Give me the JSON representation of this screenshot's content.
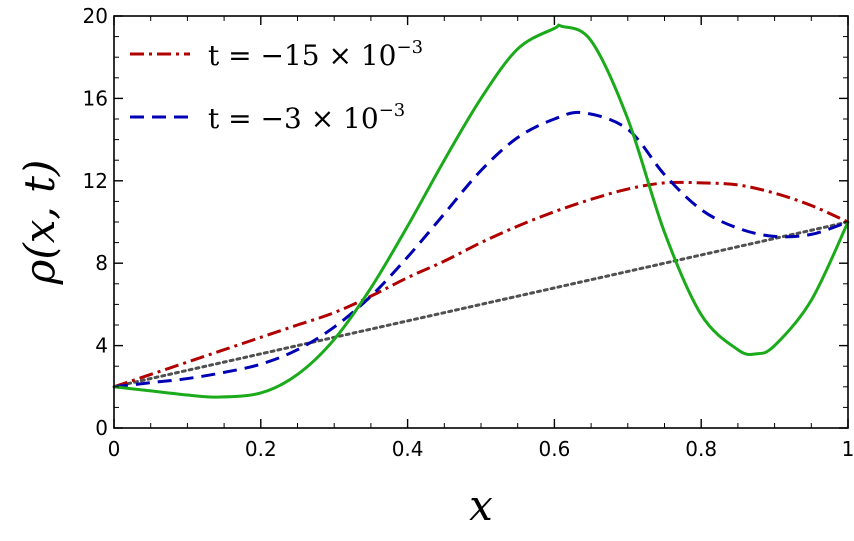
{
  "chart_data": {
    "type": "line",
    "xlabel": "x",
    "ylabel": "ρ(x, t)",
    "xlim": [
      0,
      1
    ],
    "ylim": [
      0,
      20
    ],
    "xticks": [
      0,
      0.2,
      0.4,
      0.6,
      0.8,
      1
    ],
    "xtick_labels": [
      "0",
      "0.2",
      "0.4",
      "0.6",
      "0.8",
      "1"
    ],
    "yticks": [
      0,
      4,
      8,
      12,
      16,
      20
    ],
    "ytick_labels": [
      "0",
      "4",
      "8",
      "12",
      "16",
      "20"
    ],
    "grid": false,
    "legend_placement": "top-left",
    "legend": [
      {
        "label": "t = −15 × 10",
        "exponent": "−3",
        "color": "#b00000",
        "dash": "dashdot"
      },
      {
        "label": "t = −3 × 10",
        "exponent": "−3",
        "color": "#0000b4",
        "dash": "dashed"
      }
    ],
    "series": [
      {
        "color": "#b00000",
        "dash": "dashdot",
        "x": [
          0,
          0.05,
          0.1,
          0.15,
          0.2,
          0.25,
          0.3,
          0.35,
          0.4,
          0.45,
          0.5,
          0.55,
          0.6,
          0.65,
          0.7,
          0.75,
          0.8,
          0.85,
          0.9,
          0.95,
          1
        ],
        "y": [
          2.0,
          2.6,
          3.2,
          3.8,
          4.4,
          5.0,
          5.6,
          6.4,
          7.3,
          8.1,
          9.0,
          9.8,
          10.5,
          11.1,
          11.6,
          11.9,
          11.9,
          11.8,
          11.4,
          10.8,
          10.0
        ]
      },
      {
        "color": "#0000b4",
        "dash": "dashed",
        "x": [
          0,
          0.05,
          0.1,
          0.15,
          0.2,
          0.25,
          0.3,
          0.35,
          0.4,
          0.45,
          0.5,
          0.55,
          0.6,
          0.64,
          0.7,
          0.75,
          0.8,
          0.85,
          0.9,
          0.95,
          1
        ],
        "y": [
          2.0,
          2.2,
          2.4,
          2.7,
          3.1,
          3.8,
          4.9,
          6.4,
          8.3,
          10.4,
          12.5,
          14.1,
          15.0,
          15.3,
          14.5,
          12.3,
          10.6,
          9.7,
          9.3,
          9.4,
          10.0
        ]
      },
      {
        "color": "#1aaa1a",
        "dash": "solid",
        "x": [
          0,
          0.05,
          0.1,
          0.14,
          0.2,
          0.25,
          0.3,
          0.35,
          0.4,
          0.45,
          0.5,
          0.55,
          0.6,
          0.61,
          0.65,
          0.7,
          0.75,
          0.8,
          0.85,
          0.875,
          0.9,
          0.95,
          1
        ],
        "y": [
          2.0,
          1.8,
          1.6,
          1.5,
          1.7,
          2.6,
          4.3,
          6.8,
          9.8,
          13.0,
          16.0,
          18.4,
          19.4,
          19.5,
          18.8,
          15.0,
          9.5,
          5.5,
          3.8,
          3.6,
          4.0,
          6.2,
          10.0
        ]
      },
      {
        "color": "#505050",
        "dash": "dotted",
        "x": [
          0,
          1
        ],
        "y": [
          2.0,
          10.0
        ]
      }
    ]
  }
}
